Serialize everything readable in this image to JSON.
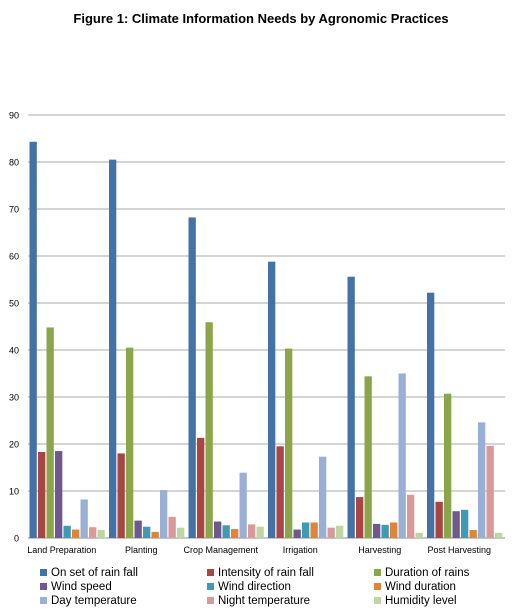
{
  "chart_data": {
    "type": "bar",
    "title": "Figure 1: Climate Information Needs by Agronomic Practices",
    "xlabel": "",
    "ylabel": "",
    "ylim": [
      0,
      90
    ],
    "yticks": [
      0,
      10,
      20,
      30,
      40,
      50,
      60,
      70,
      80,
      90
    ],
    "grid": true,
    "legend_position": "bottom",
    "categories": [
      "Land Preparation",
      "Planting",
      "Crop Management",
      "Irrigation",
      "Harvesting",
      "Post Harvesting"
    ],
    "series": [
      {
        "name": "On set of rain fall",
        "color": "#4472A7",
        "values": [
          84.3,
          80.5,
          68.2,
          58.8,
          55.6,
          52.2
        ]
      },
      {
        "name": "Intensity of rain fall",
        "color": "#A94542",
        "values": [
          18.3,
          18.0,
          21.3,
          19.5,
          8.7,
          7.7
        ]
      },
      {
        "name": "Duration of rains",
        "color": "#8AA54A",
        "values": [
          44.8,
          40.5,
          45.9,
          40.3,
          34.4,
          30.7
        ]
      },
      {
        "name": "Wind speed",
        "color": "#6F578F",
        "values": [
          18.5,
          3.7,
          3.5,
          1.8,
          3.0,
          5.7
        ]
      },
      {
        "name": "Wind direction",
        "color": "#3F9AB3",
        "values": [
          2.6,
          2.4,
          2.7,
          3.3,
          2.8,
          6.0
        ]
      },
      {
        "name": "Wind duration",
        "color": "#E0843A",
        "values": [
          1.8,
          1.3,
          1.9,
          3.3,
          3.3,
          1.7
        ]
      },
      {
        "name": "Day temperature",
        "color": "#99AFD6",
        "values": [
          8.2,
          10.2,
          13.9,
          17.3,
          35.0,
          24.6
        ]
      },
      {
        "name": "Night temperature",
        "color": "#D89A99",
        "values": [
          2.3,
          4.5,
          2.9,
          2.2,
          9.2,
          19.6
        ]
      },
      {
        "name": "Humidity level",
        "color": "#C0D6A2",
        "values": [
          1.7,
          2.2,
          2.4,
          2.6,
          1.1,
          1.1
        ]
      }
    ]
  }
}
